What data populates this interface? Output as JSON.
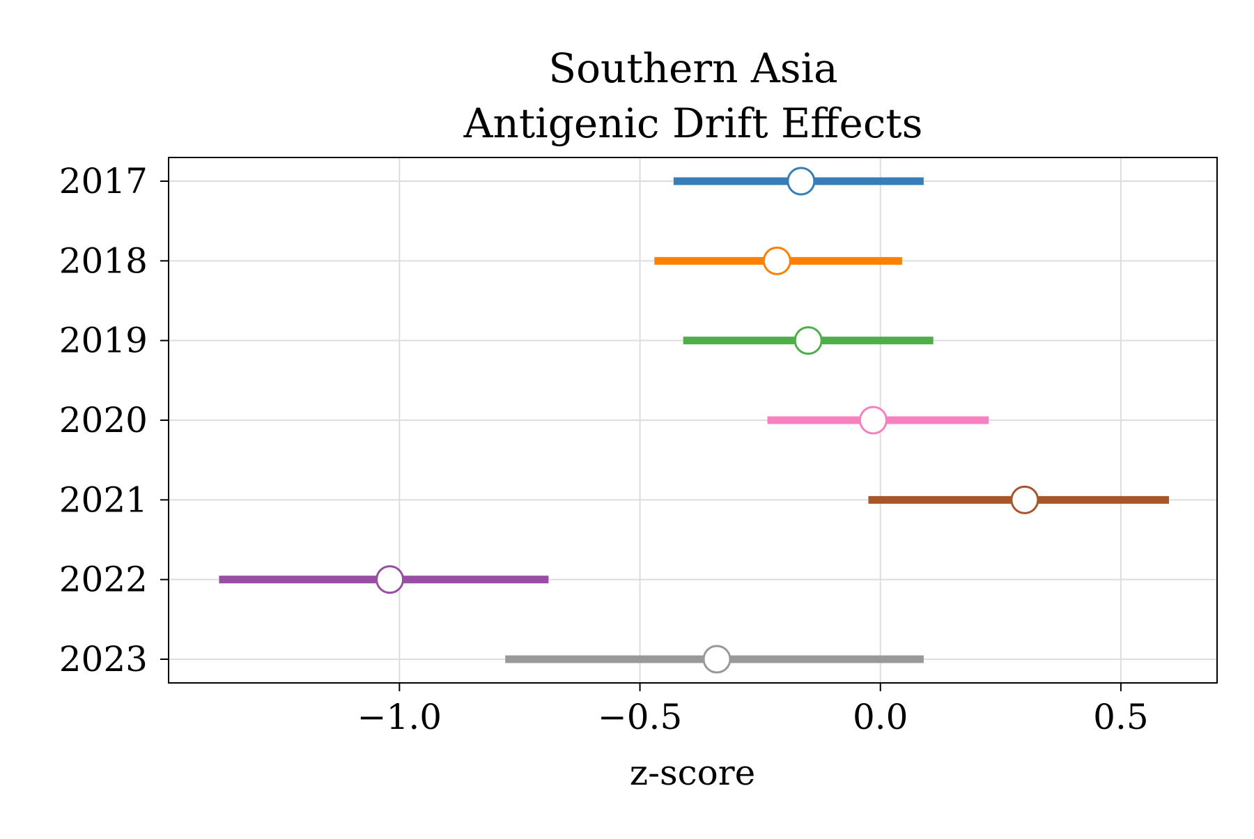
{
  "chart_data": {
    "type": "forest",
    "title": "Southern Asia\nAntigenic Drift Effects",
    "title_lines": [
      "Southern Asia",
      "Antigenic Drift Effects"
    ],
    "xlabel": "z-score",
    "ylabel": "",
    "xlim": [
      -1.48,
      0.7
    ],
    "x_ticks": [
      -1.0,
      -0.5,
      0.0,
      0.5
    ],
    "x_tick_labels": [
      "−1.0",
      "−0.5",
      "0.0",
      "0.5"
    ],
    "grid": true,
    "series": [
      {
        "label": "2017",
        "estimate": -0.165,
        "lower": -0.43,
        "upper": 0.09,
        "color": "#377eb8"
      },
      {
        "label": "2018",
        "estimate": -0.215,
        "lower": -0.47,
        "upper": 0.045,
        "color": "#ff7f00"
      },
      {
        "label": "2019",
        "estimate": -0.15,
        "lower": -0.41,
        "upper": 0.11,
        "color": "#4daf4a"
      },
      {
        "label": "2020",
        "estimate": -0.015,
        "lower": -0.235,
        "upper": 0.225,
        "color": "#f781bf"
      },
      {
        "label": "2021",
        "estimate": 0.3,
        "lower": -0.025,
        "upper": 0.6,
        "color": "#a65628"
      },
      {
        "label": "2022",
        "estimate": -1.02,
        "lower": -1.375,
        "upper": -0.69,
        "color": "#984ea3"
      },
      {
        "label": "2023",
        "estimate": -0.34,
        "lower": -0.78,
        "upper": 0.09,
        "color": "#999999"
      }
    ]
  }
}
